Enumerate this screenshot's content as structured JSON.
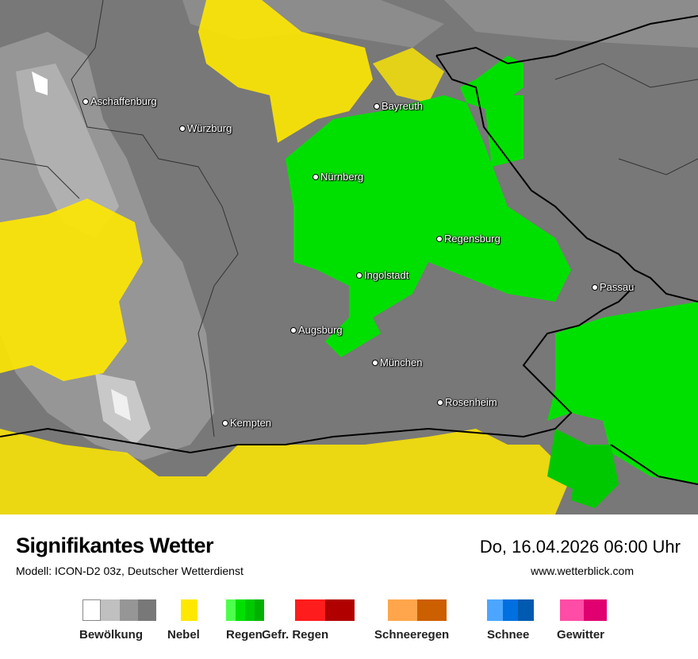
{
  "header": {
    "title": "Signifikantes Wetter",
    "subtitle": "Modell: ICON-D2 03z, Deutscher Wetterdienst",
    "datetime": "Do, 16.04.2026 06:00 Uhr",
    "website": "www.wetterblick.com"
  },
  "cities": [
    {
      "name": "Aschaffenburg"
    },
    {
      "name": "Würzburg"
    },
    {
      "name": "Bayreuth"
    },
    {
      "name": "Nürnberg"
    },
    {
      "name": "Regensburg"
    },
    {
      "name": "Ingolstadt"
    },
    {
      "name": "Passau"
    },
    {
      "name": "Augsburg"
    },
    {
      "name": "München"
    },
    {
      "name": "Rosenheim"
    },
    {
      "name": "Kempten"
    }
  ],
  "legend": [
    {
      "label": "Bewölkung",
      "colors": [
        "#ffffff",
        "#c0c0c0",
        "#969696",
        "#787878"
      ]
    },
    {
      "label": "Nebel",
      "colors": [
        "#ffe800"
      ]
    },
    {
      "label": "Regen",
      "colors": [
        "#4cff4c",
        "#00e000",
        "#00c800",
        "#00b000"
      ]
    },
    {
      "label": "Gefr. Regen",
      "colors": [
        "#ff1c1c",
        "#b00000"
      ]
    },
    {
      "label": "Schneeregen",
      "colors": [
        "#ffa64c",
        "#cc5f00"
      ]
    },
    {
      "label": "Schnee",
      "colors": [
        "#4ca6ff",
        "#0070e0",
        "#005ab0"
      ]
    },
    {
      "label": "Gewitter",
      "colors": [
        "#ff4ca6",
        "#e00070"
      ]
    }
  ]
}
